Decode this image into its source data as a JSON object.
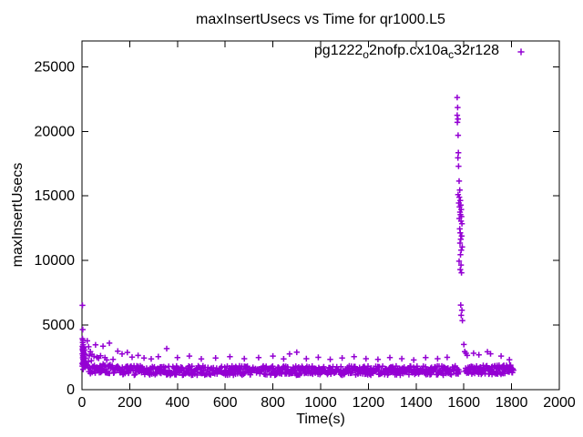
{
  "window": {
    "background": "#ffffff",
    "axis_color": "#000000"
  },
  "chart_data": {
    "type": "scatter",
    "title": "maxInsertUsecs vs Time for qr1000.L5",
    "xlabel": "Time(s)",
    "ylabel": "maxInsertUsecs",
    "xlim": [
      0,
      2000
    ],
    "ylim": [
      0,
      27000
    ],
    "xticks": [
      0,
      200,
      400,
      600,
      800,
      1000,
      1200,
      1400,
      1600,
      1800,
      2000
    ],
    "yticks": [
      0,
      5000,
      10000,
      15000,
      20000,
      25000
    ],
    "grid": false,
    "tick_style": "inward-mirrored",
    "legend_position": "top-right-inside",
    "series": [
      {
        "name": "pg1222_o2nofp.cx10a_c32r128",
        "label_segments": [
          {
            "t": "pg1222"
          },
          {
            "t": "o",
            "sub": true
          },
          {
            "t": "2nofp.cx10a"
          },
          {
            "t": "c",
            "sub": true
          },
          {
            "t": "32r128"
          }
        ],
        "marker": "plus",
        "color": "#9400D3",
        "startup_points": [
          [
            2,
            6530
          ],
          [
            3,
            4650
          ],
          [
            2,
            3950
          ],
          [
            4,
            3820
          ],
          [
            3,
            3650
          ],
          [
            5,
            3480
          ],
          [
            2,
            3350
          ],
          [
            6,
            3230
          ],
          [
            4,
            3130
          ],
          [
            3,
            3040
          ],
          [
            5,
            2960
          ],
          [
            7,
            2870
          ],
          [
            2,
            2780
          ],
          [
            8,
            2700
          ],
          [
            4,
            2640
          ],
          [
            6,
            2560
          ],
          [
            3,
            2470
          ],
          [
            9,
            2400
          ],
          [
            5,
            2340
          ],
          [
            7,
            2280
          ],
          [
            10,
            2230
          ],
          [
            6,
            2160
          ],
          [
            8,
            2100
          ],
          [
            11,
            2040
          ],
          [
            9,
            1980
          ],
          [
            12,
            1930
          ],
          [
            13,
            1860
          ],
          [
            14,
            1800
          ]
        ],
        "outlier_points": [
          [
            22,
            3780
          ],
          [
            28,
            3320
          ],
          [
            35,
            2950
          ],
          [
            42,
            2730
          ],
          [
            50,
            2580
          ],
          [
            57,
            3470
          ],
          [
            63,
            2500
          ],
          [
            70,
            2430
          ],
          [
            78,
            2620
          ],
          [
            88,
            3360
          ],
          [
            96,
            2480
          ],
          [
            104,
            2300
          ],
          [
            115,
            3600
          ],
          [
            130,
            2350
          ],
          [
            150,
            2980
          ],
          [
            168,
            2760
          ],
          [
            190,
            2880
          ],
          [
            210,
            2520
          ],
          [
            235,
            2650
          ],
          [
            260,
            2450
          ],
          [
            290,
            2380
          ],
          [
            320,
            2560
          ],
          [
            355,
            3180
          ],
          [
            400,
            2480
          ],
          [
            450,
            2600
          ],
          [
            500,
            2380
          ],
          [
            560,
            2450
          ],
          [
            620,
            2550
          ],
          [
            680,
            2400
          ],
          [
            740,
            2480
          ],
          [
            800,
            2600
          ],
          [
            845,
            2380
          ],
          [
            870,
            2760
          ],
          [
            900,
            2900
          ],
          [
            940,
            2400
          ],
          [
            990,
            2500
          ],
          [
            1040,
            2350
          ],
          [
            1090,
            2450
          ],
          [
            1140,
            2550
          ],
          [
            1190,
            2400
          ],
          [
            1240,
            2350
          ],
          [
            1290,
            2480
          ],
          [
            1340,
            2400
          ],
          [
            1390,
            2300
          ],
          [
            1440,
            2480
          ],
          [
            1490,
            2400
          ],
          [
            1530,
            2500
          ]
        ],
        "spike_points": [
          [
            1572,
            22620
          ],
          [
            1574,
            21850
          ],
          [
            1572,
            21250
          ],
          [
            1575,
            20950
          ],
          [
            1573,
            20700
          ],
          [
            1576,
            19700
          ],
          [
            1577,
            18350
          ],
          [
            1575,
            17950
          ],
          [
            1578,
            17300
          ],
          [
            1580,
            16150
          ],
          [
            1583,
            15450
          ],
          [
            1576,
            15100
          ],
          [
            1581,
            14900
          ],
          [
            1585,
            14650
          ],
          [
            1579,
            14450
          ],
          [
            1587,
            14300
          ],
          [
            1582,
            14150
          ],
          [
            1589,
            13950
          ],
          [
            1584,
            13750
          ],
          [
            1586,
            13550
          ],
          [
            1590,
            13400
          ],
          [
            1581,
            13250
          ],
          [
            1588,
            13050
          ],
          [
            1592,
            12850
          ],
          [
            1583,
            12450
          ],
          [
            1585,
            12150
          ],
          [
            1591,
            11900
          ],
          [
            1587,
            11650
          ],
          [
            1584,
            11350
          ],
          [
            1593,
            11050
          ],
          [
            1589,
            10800
          ],
          [
            1586,
            10450
          ],
          [
            1580,
            9950
          ],
          [
            1588,
            9650
          ],
          [
            1585,
            9300
          ],
          [
            1590,
            9050
          ],
          [
            1587,
            6550
          ],
          [
            1592,
            6150
          ],
          [
            1589,
            5750
          ],
          [
            1594,
            5350
          ],
          [
            1600,
            3500
          ],
          [
            1604,
            2950
          ],
          [
            1609,
            2820
          ],
          [
            1614,
            2650
          ],
          [
            1641,
            2820
          ],
          [
            1663,
            2700
          ],
          [
            1699,
            2930
          ],
          [
            1712,
            2780
          ],
          [
            1756,
            2600
          ],
          [
            1791,
            2320
          ]
        ],
        "baseline_bands": [
          {
            "x_start": 1,
            "x_end": 15,
            "step": 0.7,
            "y_min": 1500,
            "y_max": 3300,
            "decay_amp": 0,
            "decay_tau": 1
          },
          {
            "x_start": 10,
            "x_end": 1581,
            "step": 2.2,
            "y_min": 1120,
            "y_max": 1840,
            "decay_amp": 1450,
            "decay_tau": 42
          },
          {
            "x_start": 1606,
            "x_end": 1809,
            "step": 2.2,
            "y_min": 1180,
            "y_max": 1900,
            "decay_amp": 0,
            "decay_tau": 1
          }
        ],
        "noise_seed": 987654321
      }
    ]
  }
}
